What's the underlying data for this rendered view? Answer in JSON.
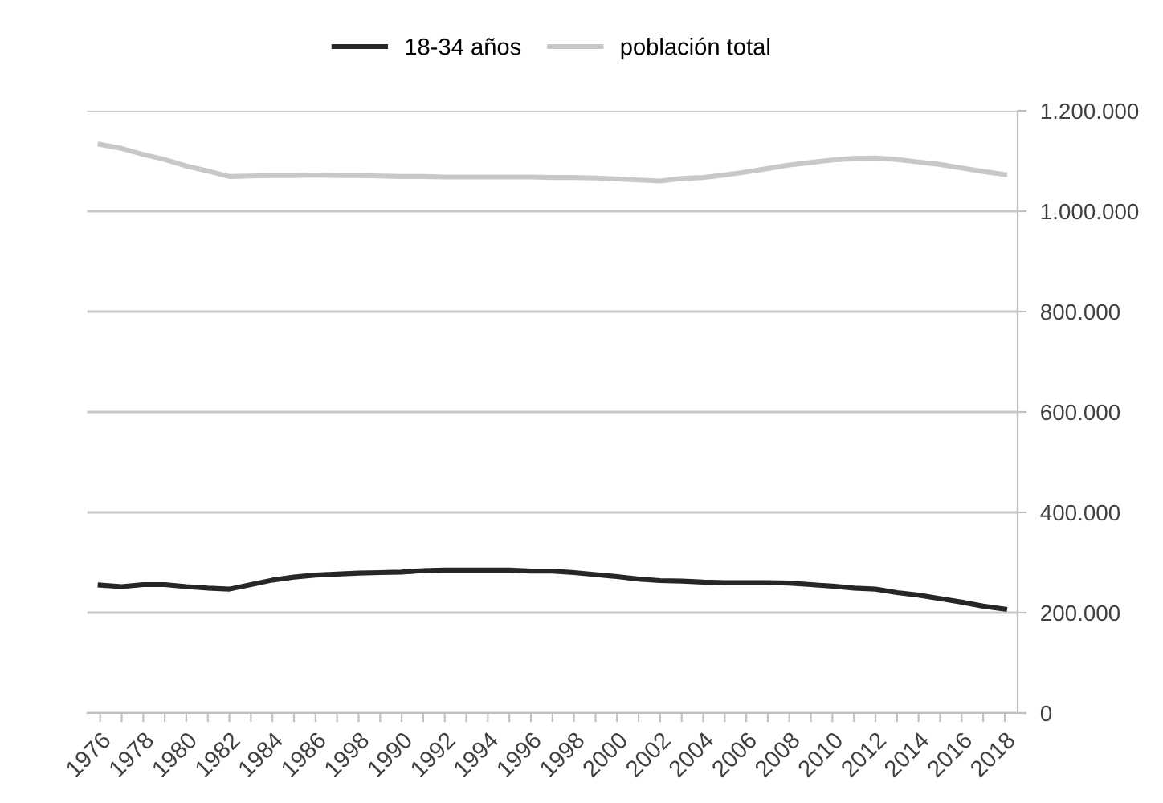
{
  "chart_data": {
    "type": "line",
    "categories": [
      "1976",
      null,
      "1978",
      null,
      "1980",
      null,
      "1982",
      null,
      "1984",
      null,
      "1986",
      null,
      "1998",
      null,
      "1990",
      null,
      "1992",
      null,
      "1994",
      null,
      "1996",
      null,
      "1998",
      null,
      "2000",
      null,
      "2002",
      null,
      "2004",
      null,
      "2006",
      null,
      "2008",
      null,
      "2010",
      null,
      "2012",
      null,
      "2014",
      null,
      "2016",
      null,
      "2018"
    ],
    "series": [
      {
        "name": "18-34 años",
        "color": "#262626",
        "values": [
          255000,
          252000,
          256000,
          256000,
          252000,
          249000,
          247000,
          256000,
          265000,
          271000,
          275000,
          277000,
          279000,
          280000,
          281000,
          284000,
          285000,
          285000,
          285000,
          285000,
          283000,
          283000,
          280000,
          276000,
          272000,
          267000,
          264000,
          263000,
          261000,
          260000,
          260000,
          260000,
          259000,
          256000,
          253000,
          249000,
          247000,
          240000,
          235000,
          228000,
          221000,
          213000,
          207000
        ]
      },
      {
        "name": "población total",
        "color": "#c8c8c8",
        "values": [
          1133000,
          1125000,
          1113000,
          1103000,
          1090000,
          1080000,
          1069000,
          1070000,
          1071000,
          1071000,
          1072000,
          1071000,
          1071000,
          1070000,
          1069000,
          1069000,
          1068000,
          1068000,
          1068000,
          1068000,
          1068000,
          1067000,
          1067000,
          1066000,
          1064000,
          1062000,
          1060000,
          1065000,
          1067000,
          1072000,
          1078000,
          1085000,
          1092000,
          1097000,
          1102000,
          1105000,
          1106000,
          1103000,
          1098000,
          1093000,
          1086000,
          1079000,
          1073000
        ]
      }
    ],
    "ylim": [
      0,
      1200000
    ],
    "yticks": [
      0,
      {
        "value": 200000,
        "label": "200.000"
      },
      {
        "value": 400000,
        "label": "400.000"
      },
      {
        "value": 600000,
        "label": "600.000"
      },
      {
        "value": 800000,
        "label": "800.000"
      },
      {
        "value": 1000000,
        "label": "1.000.000"
      },
      {
        "value": 1200000,
        "label": "1.200.000"
      }
    ],
    "grid": "y",
    "legend": "top",
    "marker": "none",
    "line_style": "solid"
  }
}
